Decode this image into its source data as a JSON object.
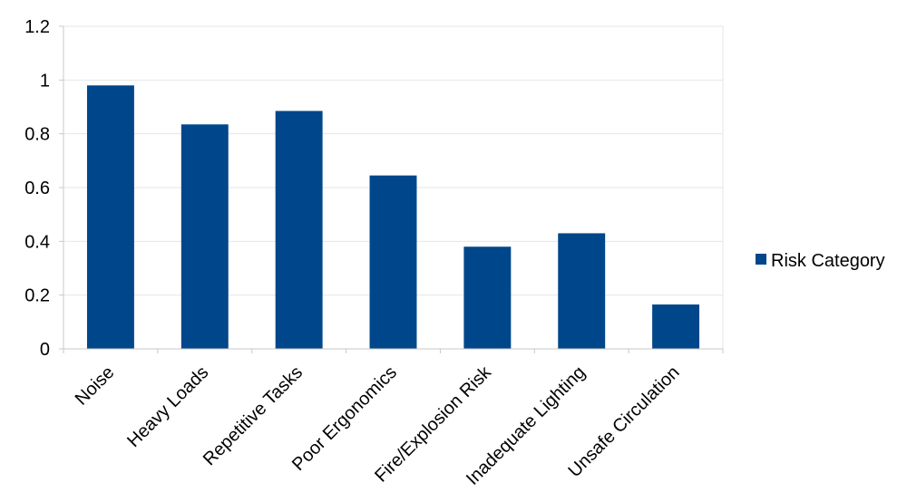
{
  "chart_data": {
    "type": "bar",
    "categories": [
      "Noise",
      "Heavy Loads",
      "Repetitive Tasks",
      "Poor Ergonomics",
      "Fire/Explosion Risk",
      "Inadequate Lighting",
      "Unsafe Circulation"
    ],
    "series": [
      {
        "name": "Risk Category",
        "values": [
          0.98,
          0.835,
          0.885,
          0.645,
          0.38,
          0.43,
          0.165
        ],
        "color": "#00468B"
      }
    ],
    "yticks": [
      "0",
      "0.2",
      "0.4",
      "0.6",
      "0.8",
      "1",
      "1.2"
    ],
    "ylim": [
      0,
      1.2
    ],
    "grid": true,
    "legend_position": "right",
    "xlabel": "",
    "ylabel": ""
  }
}
